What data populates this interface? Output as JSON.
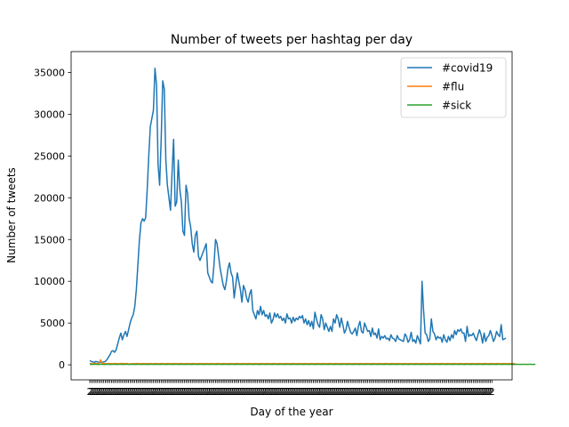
{
  "chart_data": {
    "type": "line",
    "title": "Number of tweets per hashtag per day",
    "xlabel": "Day of the year",
    "ylabel": "Number of tweets",
    "ylim": [
      -1800,
      37500
    ],
    "yticks": [
      0,
      5000,
      10000,
      15000,
      20000,
      25000,
      30000,
      35000
    ],
    "ytick_labels": [
      "0",
      "5000",
      "10000",
      "15000",
      "20000",
      "25000",
      "30000",
      "35000"
    ],
    "x_categories_count": 260,
    "xlim": [
      -12,
      272
    ],
    "grid": false,
    "legend_position": "top-right",
    "series": [
      {
        "name": "#covid19",
        "color": "#1f77b4",
        "values": [
          500,
          400,
          350,
          300,
          400,
          350,
          300,
          300,
          320,
          350,
          400,
          600,
          900,
          1200,
          1600,
          1700,
          1500,
          1800,
          2500,
          3200,
          3800,
          3000,
          3600,
          4000,
          3400,
          4200,
          5000,
          5600,
          6000,
          7000,
          9000,
          12000,
          15000,
          17000,
          17500,
          17200,
          17600,
          21000,
          25000,
          28500,
          29500,
          30500,
          35500,
          33500,
          24000,
          21500,
          27000,
          34000,
          33000,
          24500,
          21500,
          20000,
          18500,
          23000,
          27000,
          19000,
          19500,
          24500,
          21000,
          19500,
          16000,
          15500,
          21500,
          20500,
          17500,
          16500,
          14500,
          13500,
          15500,
          16000,
          13000,
          12500,
          13000,
          13500,
          14000,
          14500,
          11000,
          10500,
          10000,
          9800,
          12000,
          15000,
          14500,
          13000,
          11500,
          10500,
          9500,
          9000,
          10000,
          11500,
          12200,
          11000,
          10500,
          8000,
          9500,
          11000,
          10000,
          9000,
          7500,
          9500,
          9000,
          8000,
          7500,
          8500,
          9000,
          6500,
          6000,
          5500,
          6500,
          6000,
          7000,
          6000,
          6500,
          5800,
          6000,
          5500,
          6200,
          5000,
          5400,
          6200,
          5700,
          6100,
          5600,
          5800,
          5300,
          5600,
          5000,
          6100,
          5500,
          5600,
          5000,
          5700,
          5200,
          5600,
          5400,
          5800,
          5600,
          5900,
          5000,
          5500,
          4800,
          5300,
          4600,
          5200,
          4300,
          6300,
          5500,
          4800,
          4500,
          6000,
          5500,
          4200,
          5000,
          4500,
          4000,
          4600,
          4000,
          5500,
          5000,
          6000,
          5500,
          4500,
          5600,
          4800,
          3800,
          4200,
          5200,
          4500,
          3900,
          3700,
          4000,
          4400,
          3500,
          4600,
          5200,
          4000,
          3800,
          5000,
          4500,
          4000,
          4100,
          3400,
          4400,
          3600,
          3800,
          3200,
          4300,
          3000,
          3400,
          3200,
          3500,
          3100,
          3200,
          2900,
          3600,
          3200,
          3100,
          2800,
          3500,
          3100,
          3000,
          2900,
          2800,
          3700,
          3400,
          2700,
          3000,
          3900,
          2800,
          3000,
          2600,
          3500,
          3000,
          2500,
          10000,
          6500,
          3800,
          3600,
          2800,
          3100,
          5500,
          4000,
          3700,
          3000,
          3400,
          3200,
          3300,
          2700,
          3600,
          3000,
          2700,
          3400,
          2900,
          3600,
          3200,
          4100,
          3600,
          4200,
          4000,
          4300,
          3800,
          3800,
          2800,
          4600,
          3400,
          3600,
          3500,
          3800,
          3300,
          2900,
          3600,
          4200,
          3600,
          2600,
          3800,
          2800,
          3300,
          3500,
          4100,
          3500,
          2800,
          3200,
          4000,
          3600,
          3400,
          4800,
          3000,
          3100,
          3200
        ]
      },
      {
        "name": "#flu",
        "color": "#ff7f0e",
        "values": [
          150,
          140,
          130,
          160,
          150,
          140,
          130,
          600,
          160,
          150,
          140,
          130,
          160,
          150,
          140,
          130,
          160,
          150,
          140,
          130,
          160,
          170,
          140,
          150,
          160,
          120,
          100,
          150,
          140,
          130,
          160,
          150,
          140,
          130,
          160,
          150,
          140,
          130,
          160,
          150,
          140,
          130,
          160,
          150,
          140,
          130,
          160,
          150,
          140,
          130,
          160,
          150,
          140,
          130,
          160,
          150,
          140,
          130,
          160,
          150,
          140,
          130,
          160,
          150,
          140,
          130,
          160,
          150,
          140,
          130,
          160,
          150,
          140,
          130,
          160,
          150,
          140,
          130,
          160,
          150,
          140,
          130,
          160,
          150,
          140,
          130,
          160,
          150,
          140,
          130,
          160,
          150,
          140,
          130,
          160,
          150,
          140,
          130,
          160,
          150,
          140,
          130,
          160,
          150,
          140,
          130,
          160,
          150,
          140,
          130,
          160,
          150,
          140,
          130,
          160,
          150,
          140,
          130,
          160,
          150,
          140,
          130,
          160,
          150,
          140,
          130,
          160,
          150,
          140,
          130,
          160,
          150,
          140,
          130,
          160,
          150,
          140,
          130,
          160,
          150,
          140,
          130,
          160,
          150,
          140,
          130,
          160,
          150,
          140,
          130,
          160,
          150,
          140,
          130,
          160,
          150,
          140,
          130,
          160,
          150,
          140,
          130,
          160,
          150,
          140,
          130,
          160,
          150,
          140,
          130,
          160,
          150,
          140,
          130,
          160,
          150,
          140,
          130,
          160,
          150,
          140,
          130,
          160,
          150,
          140,
          130,
          160,
          150,
          140,
          130,
          160,
          150,
          140,
          130,
          160,
          150,
          140,
          130,
          160,
          150,
          140,
          130,
          160,
          150,
          140,
          130,
          160,
          150,
          140,
          130,
          160,
          150,
          140,
          130,
          160,
          150,
          140,
          130,
          160,
          150,
          140,
          130,
          160,
          150,
          140,
          130,
          160,
          150,
          140,
          130,
          160,
          150,
          140,
          130,
          160,
          150,
          140,
          130,
          160,
          150,
          140,
          130,
          160,
          150,
          140,
          130,
          160,
          150,
          140,
          130,
          160,
          150,
          140,
          130,
          160,
          150,
          140,
          130,
          160,
          150,
          140,
          130,
          160,
          150,
          140,
          130,
          160,
          150,
          140,
          130,
          160,
          150,
          140,
          130,
          160
        ]
      },
      {
        "name": "#sick",
        "color": "#2ca02c",
        "values": [
          60,
          55,
          50,
          70,
          60,
          55,
          50,
          70,
          60,
          55,
          50,
          70,
          60,
          55,
          50,
          70,
          60,
          55,
          50,
          70,
          60,
          55,
          50,
          70,
          60,
          55,
          50,
          70,
          60,
          55,
          50,
          70,
          60,
          55,
          50,
          70,
          60,
          55,
          50,
          70,
          60,
          55,
          50,
          70,
          60,
          55,
          50,
          70,
          60,
          55,
          50,
          70,
          60,
          55,
          50,
          70,
          60,
          55,
          50,
          70,
          60,
          55,
          50,
          70,
          60,
          55,
          50,
          70,
          60,
          55,
          50,
          70,
          60,
          55,
          50,
          70,
          60,
          55,
          50,
          70,
          60,
          55,
          50,
          70,
          60,
          55,
          50,
          70,
          60,
          55,
          50,
          70,
          60,
          55,
          50,
          70,
          60,
          55,
          50,
          70,
          60,
          55,
          50,
          70,
          60,
          55,
          50,
          70,
          60,
          55,
          50,
          70,
          60,
          55,
          50,
          70,
          60,
          55,
          50,
          70,
          60,
          55,
          50,
          70,
          60,
          55,
          50,
          70,
          60,
          55,
          50,
          70,
          60,
          55,
          50,
          70,
          60,
          55,
          50,
          70,
          60,
          55,
          50,
          70,
          60,
          55,
          50,
          70,
          60,
          55,
          50,
          70,
          60,
          55,
          50,
          70,
          60,
          55,
          50,
          70,
          60,
          55,
          50,
          70,
          60,
          55,
          50,
          70,
          60,
          55,
          50,
          70,
          60,
          55,
          50,
          70,
          60,
          55,
          50,
          70,
          60,
          55,
          50,
          70,
          60,
          55,
          50,
          70,
          60,
          55,
          50,
          70,
          60,
          55,
          50,
          70,
          60,
          55,
          50,
          70,
          60,
          55,
          50,
          70,
          60,
          55,
          50,
          70,
          60,
          55,
          50,
          70,
          60,
          55,
          50,
          70,
          60,
          55,
          50,
          70,
          60,
          55,
          50,
          70,
          60,
          55,
          50,
          70,
          60,
          55,
          50,
          70,
          60,
          55,
          50,
          70,
          60,
          55,
          50,
          70,
          60,
          55,
          50,
          70,
          60,
          55,
          50,
          70,
          60,
          55,
          50,
          70,
          60,
          55,
          50,
          70,
          60,
          55,
          50,
          70,
          60,
          55,
          50,
          70,
          60,
          55,
          50,
          70,
          60,
          55,
          50,
          70,
          60,
          55,
          50,
          70,
          60,
          55,
          50,
          70,
          60,
          55,
          50,
          70,
          60,
          55,
          50,
          70
        ]
      }
    ]
  }
}
